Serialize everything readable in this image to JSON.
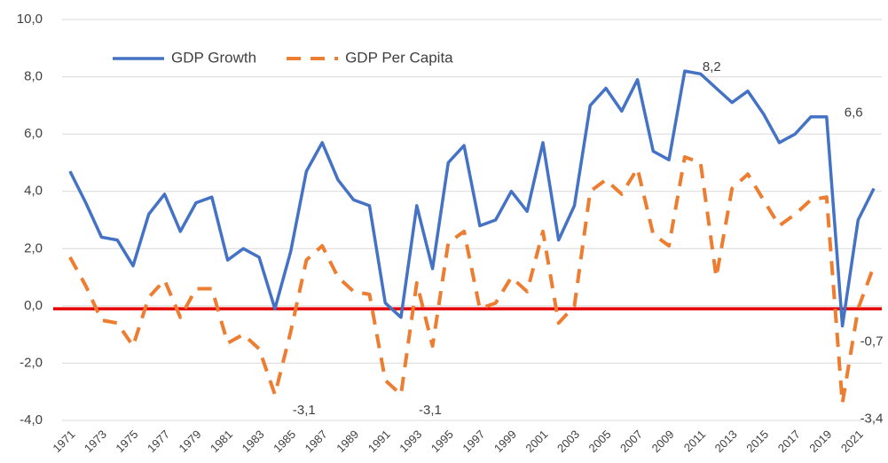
{
  "chart_data": {
    "type": "line",
    "x": [
      1971,
      1972,
      1973,
      1974,
      1975,
      1976,
      1977,
      1978,
      1979,
      1980,
      1981,
      1982,
      1983,
      1984,
      1985,
      1986,
      1987,
      1988,
      1989,
      1990,
      1991,
      1992,
      1993,
      1994,
      1995,
      1996,
      1997,
      1998,
      1999,
      2000,
      2001,
      2002,
      2003,
      2004,
      2005,
      2006,
      2007,
      2008,
      2009,
      2010,
      2011,
      2012,
      2013,
      2014,
      2015,
      2016,
      2017,
      2018,
      2019,
      2020,
      2021,
      2022
    ],
    "xlim": [
      1970.5,
      2022.5
    ],
    "xticks": [
      1971,
      1973,
      1975,
      1977,
      1979,
      1981,
      1983,
      1985,
      1987,
      1989,
      1991,
      1993,
      1995,
      1997,
      1999,
      2001,
      2003,
      2005,
      2007,
      2009,
      2011,
      2013,
      2015,
      2017,
      2019,
      2021
    ],
    "ylim": [
      -4,
      10
    ],
    "yticks": [
      {
        "value": -4,
        "label": "-4,0"
      },
      {
        "value": -2,
        "label": "-2,0"
      },
      {
        "value": 0,
        "label": "0,0"
      },
      {
        "value": 2,
        "label": "2,0"
      },
      {
        "value": 4,
        "label": "4,0"
      },
      {
        "value": 6,
        "label": "6,0"
      },
      {
        "value": 8,
        "label": "8,0"
      },
      {
        "value": 10,
        "label": "10,0"
      }
    ],
    "grid": true,
    "legend": "top-left",
    "reference_line": {
      "value": -0.1,
      "color": "#e60000"
    },
    "series": [
      {
        "name": "GDP Growth",
        "color": "#4472c4",
        "dash": false,
        "values": [
          4.7,
          3.6,
          2.4,
          2.3,
          1.4,
          3.2,
          3.9,
          2.6,
          3.6,
          3.8,
          1.6,
          2.0,
          1.7,
          -0.1,
          1.9,
          4.7,
          5.7,
          4.4,
          3.7,
          3.5,
          0.1,
          -0.4,
          3.5,
          1.3,
          5.0,
          5.6,
          2.8,
          3.0,
          4.0,
          3.3,
          5.7,
          2.3,
          3.5,
          7.0,
          7.6,
          6.8,
          7.9,
          5.4,
          5.1,
          8.2,
          8.1,
          7.6,
          7.1,
          7.5,
          6.7,
          5.7,
          6.0,
          6.6,
          6.6,
          -0.7,
          3.0,
          4.1
        ],
        "value_labels": [
          null,
          null,
          null,
          null,
          null,
          null,
          null,
          null,
          null,
          null,
          null,
          null,
          null,
          null,
          null,
          null,
          null,
          null,
          null,
          null,
          null,
          null,
          null,
          null,
          null,
          null,
          null,
          null,
          null,
          null,
          null,
          null,
          null,
          null,
          null,
          null,
          null,
          null,
          null,
          "8,2",
          null,
          null,
          null,
          null,
          null,
          null,
          null,
          null,
          "6,6",
          "-0,7",
          null,
          null
        ]
      },
      {
        "name": "GDP Per Capita",
        "color": "#ed7d31",
        "dash": true,
        "values": [
          1.7,
          0.7,
          -0.5,
          -0.6,
          -1.4,
          0.3,
          0.9,
          -0.4,
          0.6,
          0.6,
          -1.3,
          -1.0,
          -1.5,
          -3.1,
          -0.9,
          1.6,
          2.1,
          1.0,
          0.5,
          0.4,
          -2.6,
          -3.1,
          0.8,
          -1.4,
          2.2,
          2.6,
          -0.1,
          0.1,
          1.0,
          0.5,
          2.6,
          -0.6,
          0.0,
          4.0,
          4.4,
          3.9,
          4.8,
          2.5,
          2.1,
          5.2,
          5.0,
          1.0,
          4.1,
          4.6,
          3.7,
          2.8,
          3.2,
          3.7,
          3.8,
          -3.4,
          -0.1,
          1.4
        ],
        "value_labels": [
          null,
          null,
          null,
          null,
          null,
          null,
          null,
          null,
          null,
          null,
          null,
          null,
          null,
          "-3,1",
          null,
          null,
          null,
          null,
          null,
          null,
          null,
          "-3,1",
          null,
          null,
          null,
          null,
          null,
          null,
          null,
          null,
          null,
          null,
          null,
          null,
          null,
          null,
          null,
          null,
          null,
          null,
          null,
          null,
          null,
          null,
          null,
          null,
          null,
          null,
          null,
          "-3,4",
          null,
          null
        ]
      }
    ]
  }
}
